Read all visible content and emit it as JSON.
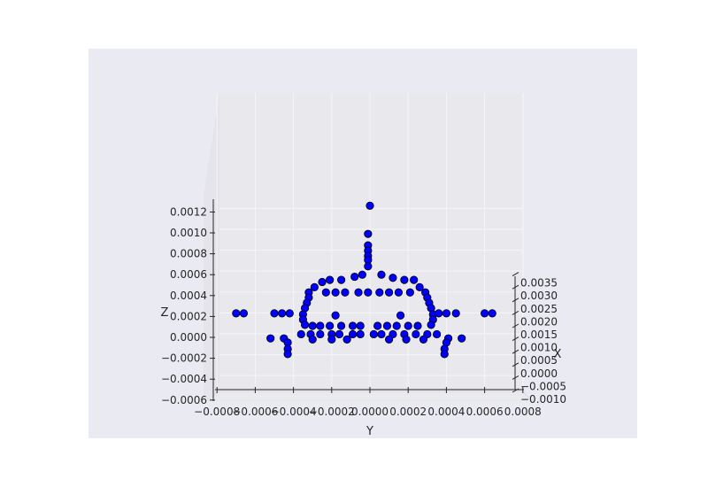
{
  "chart_data": {
    "type": "scatter",
    "title": "",
    "projection": "3d",
    "colors": {
      "background": "#eaeaf2",
      "pane": "#e8e8ed",
      "grid": "#f4f4f6",
      "marker_fill": "#0000ff",
      "marker_edge": "#000000",
      "axis": "#262626"
    },
    "axes": {
      "x": {
        "label": "X",
        "ticks": [
          "−0.0010",
          "−0.0005",
          "0.0000",
          "0.0005",
          "0.0010",
          "0.0015",
          "0.0020",
          "0.0025",
          "0.0030",
          "0.0035"
        ]
      },
      "y": {
        "label": "Y",
        "ticks": [
          "−0.0008",
          "−0.0006",
          "−0.0004",
          "−0.0002",
          "0.0000",
          "0.0002",
          "0.0004",
          "0.0006",
          "0.0008"
        ],
        "lim": [
          -0.0008,
          0.0008
        ]
      },
      "z": {
        "label": "Z",
        "ticks": [
          "−0.0006",
          "−0.0004",
          "−0.0002",
          "0.0000",
          "0.0002",
          "0.0004",
          "0.0006",
          "0.0008",
          "0.0010",
          "0.0012"
        ],
        "lim": [
          -0.0006,
          0.0012
        ]
      }
    },
    "series": [
      {
        "marker": "o",
        "points": [
          [
            0.0,
            0.0,
            0.00126
          ],
          [
            0.0,
            -1e-05,
            0.00099
          ],
          [
            0.0,
            -1e-05,
            0.00088
          ],
          [
            0.0,
            -1e-05,
            0.00083
          ],
          [
            0.0,
            -1e-05,
            0.00078
          ],
          [
            0.0,
            -1e-05,
            0.00074
          ],
          [
            0.0,
            -1e-05,
            0.00068
          ],
          [
            0.0,
            -4e-05,
            0.0006
          ],
          [
            0.0,
            -8e-05,
            0.00058
          ],
          [
            0.0,
            -0.00015,
            0.00055
          ],
          [
            0.0,
            -0.00021,
            0.00055
          ],
          [
            0.0,
            -0.00025,
            0.00053
          ],
          [
            0.0,
            6e-05,
            0.0006
          ],
          [
            0.0,
            0.00012,
            0.00057
          ],
          [
            0.0,
            0.00018,
            0.00055
          ],
          [
            0.0,
            0.00023,
            0.00055
          ],
          [
            0.0,
            -0.00029,
            0.00048
          ],
          [
            0.0,
            -0.00032,
            0.00043
          ],
          [
            0.0,
            -0.00032,
            0.00038
          ],
          [
            0.0,
            -0.00033,
            0.00033
          ],
          [
            0.0,
            -0.00034,
            0.00028
          ],
          [
            0.0,
            -0.00035,
            0.00022
          ],
          [
            0.0,
            -0.00035,
            0.00017
          ],
          [
            0.0,
            -0.00034,
            0.00012
          ],
          [
            0.0,
            0.00026,
            0.00048
          ],
          [
            0.0,
            0.00029,
            0.00043
          ],
          [
            0.0,
            0.0003,
            0.00038
          ],
          [
            0.0,
            0.00031,
            0.00033
          ],
          [
            0.0,
            0.00032,
            0.00028
          ],
          [
            0.0,
            0.00033,
            0.00022
          ],
          [
            0.0,
            0.00033,
            0.00017
          ],
          [
            0.0,
            0.00032,
            0.00012
          ],
          [
            0.0,
            -0.00023,
            0.00043
          ],
          [
            0.0,
            -0.00018,
            0.00043
          ],
          [
            0.0,
            -0.00013,
            0.00043
          ],
          [
            0.0,
            -6e-05,
            0.00043
          ],
          [
            0.0,
            -1e-05,
            0.00043
          ],
          [
            0.0,
            5e-05,
            0.00043
          ],
          [
            0.0,
            0.0001,
            0.00043
          ],
          [
            0.0,
            0.00015,
            0.00043
          ],
          [
            0.0,
            0.00021,
            0.00043
          ],
          [
            0.0,
            -0.0007,
            0.00023
          ],
          [
            0.0,
            -0.00066,
            0.00023
          ],
          [
            0.0,
            -0.0005,
            0.00023
          ],
          [
            0.0,
            -0.00046,
            0.00023
          ],
          [
            0.0,
            -0.00042,
            0.00023
          ],
          [
            0.0,
            0.0006,
            0.00023
          ],
          [
            0.0,
            0.00064,
            0.00023
          ],
          [
            0.0,
            0.00045,
            0.00023
          ],
          [
            0.0,
            0.0004,
            0.00023
          ],
          [
            0.0,
            0.00036,
            0.00023
          ],
          [
            0.0,
            -0.00018,
            0.00021
          ],
          [
            0.0,
            0.00016,
            0.00021
          ],
          [
            0.0,
            -0.0003,
            0.00011
          ],
          [
            0.0,
            -0.00026,
            0.00011
          ],
          [
            0.0,
            -0.00021,
            0.00011
          ],
          [
            0.0,
            -0.00015,
            0.00011
          ],
          [
            0.0,
            -9e-05,
            0.00011
          ],
          [
            0.0,
            -5e-05,
            0.00011
          ],
          [
            0.0,
            4e-05,
            0.00011
          ],
          [
            0.0,
            9e-05,
            0.00011
          ],
          [
            0.0,
            0.00014,
            0.00011
          ],
          [
            0.0,
            0.0002,
            0.00011
          ],
          [
            0.0,
            0.00025,
            0.00011
          ],
          [
            0.0,
            -0.00036,
            3e-05
          ],
          [
            0.0,
            -0.00031,
            3e-05
          ],
          [
            0.0,
            -0.00026,
            3e-05
          ],
          [
            0.0,
            -0.0002,
            3e-05
          ],
          [
            0.0,
            -0.00016,
            3e-05
          ],
          [
            0.0,
            -9e-05,
            3e-05
          ],
          [
            0.0,
            -5e-05,
            3e-05
          ],
          [
            0.0,
            2e-05,
            3e-05
          ],
          [
            0.0,
            6e-05,
            3e-05
          ],
          [
            0.0,
            0.00012,
            3e-05
          ],
          [
            0.0,
            0.00018,
            3e-05
          ],
          [
            0.0,
            0.00024,
            3e-05
          ],
          [
            0.0,
            0.0003,
            3e-05
          ],
          [
            0.0,
            0.00035,
            3e-05
          ],
          [
            0.0,
            -0.00045,
            -1e-05
          ],
          [
            0.0,
            -0.00052,
            -1e-05
          ],
          [
            0.0,
            0.00041,
            -1e-05
          ],
          [
            0.0,
            0.00048,
            -1e-05
          ],
          [
            0.0,
            -0.0003,
            -2e-05
          ],
          [
            0.0,
            -0.0002,
            -2e-05
          ],
          [
            0.0,
            -0.00012,
            -2e-05
          ],
          [
            0.0,
            0.0001,
            -2e-05
          ],
          [
            0.0,
            0.00019,
            -2e-05
          ],
          [
            0.0,
            0.00028,
            -2e-05
          ],
          [
            0.0,
            -0.00043,
            -5e-05
          ],
          [
            0.0,
            0.0004,
            -5e-05
          ],
          [
            0.0,
            -0.00043,
            -0.00011
          ],
          [
            0.0,
            0.00039,
            -0.00011
          ],
          [
            0.0,
            -0.00043,
            -0.00016
          ],
          [
            0.0,
            0.00039,
            -0.00016
          ]
        ]
      }
    ]
  }
}
